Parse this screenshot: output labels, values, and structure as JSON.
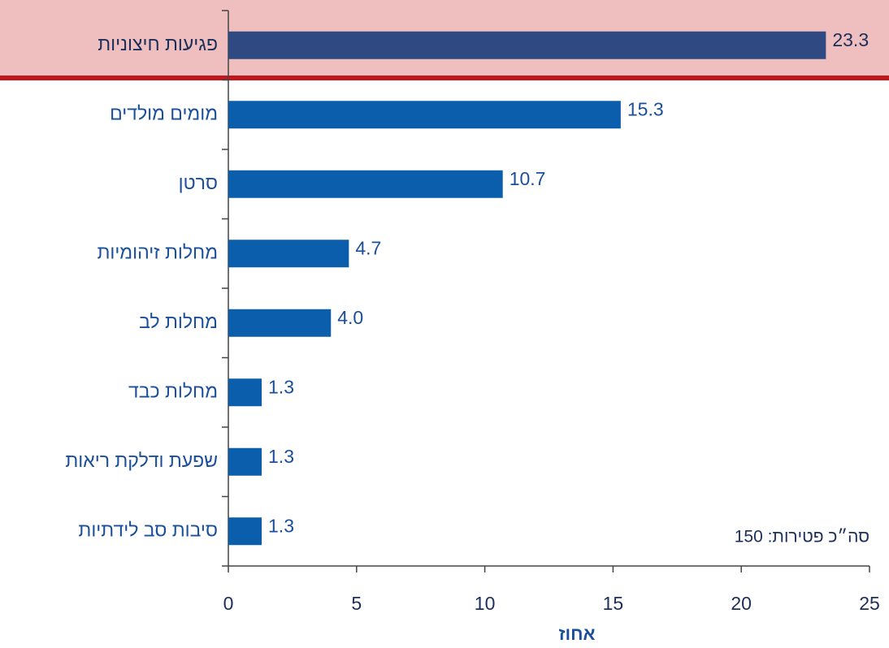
{
  "chart_data": {
    "type": "bar",
    "orientation": "horizontal",
    "categories": [
      "פגיעות חיצוניות",
      "מומים מולדים",
      "סרטן",
      "מחלות זיהומיות",
      "מחלות לב",
      "מחלות כבד",
      "שפעת ודלקת ריאות",
      "סיבות סב לידתיות"
    ],
    "values": [
      23.3,
      15.3,
      10.7,
      4.7,
      4.0,
      1.3,
      1.3,
      1.3
    ],
    "value_labels": [
      "23.3",
      "15.3",
      "10.7",
      "4.7",
      "4.0",
      "1.3",
      "1.3",
      "1.3"
    ],
    "colors": [
      "#2f4a82",
      "#0b5eab",
      "#0b5eab",
      "#0b5eab",
      "#0b5eab",
      "#0b5eab",
      "#0b5eab",
      "#0b5eab"
    ],
    "xlabel": "אחוז",
    "annotation": "סה״כ פטירות: 150",
    "xlim": [
      0,
      25
    ],
    "xticks": [
      0,
      5,
      10,
      15,
      20,
      25
    ],
    "grid": false
  }
}
